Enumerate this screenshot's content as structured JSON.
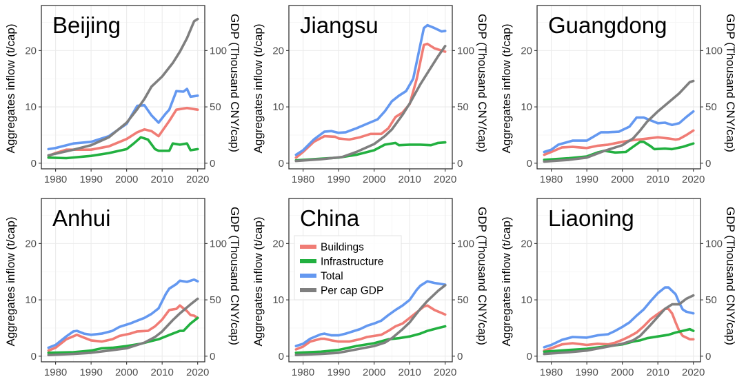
{
  "chart_data": {
    "type": "line",
    "layout": "2x3 facet grid",
    "left_axis": {
      "label": "Aggregates inflow (t/cap)",
      "ticks": [
        0,
        10,
        20
      ],
      "range": [
        -1,
        28
      ]
    },
    "right_axis": {
      "label": "GDP (Thousand CNY/cap)",
      "ticks": [
        0,
        50,
        100
      ],
      "range": [
        -5,
        140
      ],
      "scale_note": "GDP plotted as value/5 on left scale"
    },
    "x_axis": {
      "ticks": [
        1980,
        1990,
        2000,
        2010,
        2020
      ],
      "range": [
        1976,
        2022
      ]
    },
    "grid": true,
    "legend": {
      "placement": "inside China panel, upper-left",
      "entries": [
        {
          "name": "Buildings",
          "color": "#f07c75"
        },
        {
          "name": "Infrastructure",
          "color": "#22b040"
        },
        {
          "name": "Total",
          "color": "#6498f0"
        },
        {
          "name": "Per cap GDP",
          "color": "#7f7f7f"
        }
      ]
    },
    "panels": [
      {
        "title": "Beijing",
        "series": {
          "Buildings": {
            "x": [
              1978,
              1980,
              1983,
              1990,
              1995,
              2000,
              2003,
              2005,
              2007,
              2009,
              2012,
              2014,
              2017,
              2020
            ],
            "y": [
              1.3,
              1.8,
              2.4,
              2.4,
              3.0,
              4.3,
              5.5,
              6.0,
              5.7,
              4.8,
              7.5,
              9.5,
              9.8,
              9.5
            ]
          },
          "Infrastructure": {
            "x": [
              1978,
              1983,
              1990,
              1995,
              2000,
              2002,
              2004,
              2006,
              2008,
              2009,
              2012,
              2013,
              2015,
              2017,
              2018,
              2020
            ],
            "y": [
              1.0,
              0.9,
              1.3,
              1.8,
              2.5,
              3.5,
              4.6,
              4.2,
              2.5,
              2.2,
              2.2,
              3.5,
              3.3,
              3.5,
              2.3,
              2.5
            ]
          },
          "Total": {
            "x": [
              1978,
              1980,
              1985,
              1990,
              1995,
              2000,
              2003,
              2005,
              2007,
              2009,
              2011,
              2012,
              2014,
              2016,
              2017,
              2018,
              2020
            ],
            "y": [
              2.5,
              2.7,
              3.5,
              3.8,
              4.8,
              7.0,
              10.2,
              10.3,
              8.5,
              7.2,
              8.8,
              9.5,
              12.8,
              12.7,
              13.2,
              11.8,
              12.0
            ]
          },
          "Per cap GDP": {
            "x": [
              1978,
              1985,
              1990,
              1995,
              2000,
              2003,
              2005,
              2007,
              2010,
              2013,
              2015,
              2017,
              2019,
              2020
            ],
            "y": [
              7,
              12,
              16,
              23,
              36,
              48,
              57,
              68,
              77,
              89,
              99,
              111,
              126,
              128
            ]
          }
        }
      },
      {
        "title": "Jiangsu",
        "series": {
          "Buildings": {
            "x": [
              1978,
              1980,
              1983,
              1986,
              1989,
              1990,
              1993,
              1996,
              1999,
              2002,
              2004,
              2006,
              2008,
              2010,
              2012,
              2014,
              2015,
              2017,
              2020
            ],
            "y": [
              1.0,
              2.0,
              3.8,
              4.8,
              4.7,
              4.4,
              4.2,
              4.6,
              5.2,
              5.2,
              6.2,
              8.2,
              9.0,
              10.5,
              15.0,
              21.0,
              21.2,
              20.4,
              19.8
            ]
          },
          "Infrastructure": {
            "x": [
              1978,
              1985,
              1990,
              1995,
              2000,
              2003,
              2006,
              2007,
              2010,
              2013,
              2016,
              2018,
              2020
            ],
            "y": [
              0.5,
              0.8,
              1.0,
              1.5,
              2.3,
              3.3,
              3.6,
              3.2,
              3.3,
              3.3,
              3.2,
              3.6,
              3.7
            ]
          },
          "Total": {
            "x": [
              1978,
              1980,
              1983,
              1986,
              1988,
              1990,
              1992,
              1995,
              1998,
              2001,
              2003,
              2005,
              2007,
              2009,
              2011,
              2013,
              2014,
              2015,
              2017,
              2019,
              2020
            ],
            "y": [
              1.5,
              2.3,
              4.2,
              5.6,
              5.7,
              5.4,
              5.5,
              6.2,
              7.0,
              7.8,
              9.2,
              11.0,
              12.0,
              12.8,
              15.0,
              21.0,
              24.0,
              24.5,
              24.0,
              23.4,
              23.5
            ]
          },
          "Per cap GDP": {
            "x": [
              1978,
              1985,
              1991,
              1995,
              2000,
              2003,
              2005,
              2008,
              2010,
              2013,
              2015,
              2018,
              2020
            ],
            "y": [
              2,
              3.5,
              5.5,
              10,
              17,
              24,
              30,
              43,
              53,
              70,
              80,
              95,
              104
            ]
          }
        }
      },
      {
        "title": "Guangdong",
        "series": {
          "Buildings": {
            "x": [
              1978,
              1980,
              1983,
              1986,
              1990,
              1993,
              1996,
              2000,
              2003,
              2006,
              2010,
              2013,
              2015,
              2016,
              2018,
              2020
            ],
            "y": [
              1.5,
              2.0,
              2.8,
              2.9,
              2.7,
              3.1,
              3.3,
              3.8,
              4.1,
              4.3,
              4.6,
              4.4,
              4.2,
              4.3,
              5.0,
              5.8
            ]
          },
          "Infrastructure": {
            "x": [
              1978,
              1985,
              1990,
              1993,
              1995,
              1998,
              2001,
              2003,
              2005,
              2006,
              2008,
              2009,
              2012,
              2014,
              2017,
              2020
            ],
            "y": [
              0.6,
              0.9,
              1.2,
              1.9,
              2.2,
              1.9,
              2.0,
              2.9,
              3.8,
              3.8,
              3.0,
              2.5,
              2.6,
              2.5,
              2.9,
              3.5
            ]
          },
          "Total": {
            "x": [
              1978,
              1980,
              1982,
              1986,
              1990,
              1994,
              1996,
              1999,
              2002,
              2004,
              2006,
              2008,
              2010,
              2012,
              2014,
              2016,
              2018,
              2020
            ],
            "y": [
              2.0,
              2.4,
              3.3,
              4.0,
              4.0,
              5.5,
              5.5,
              5.6,
              6.5,
              8.1,
              8.1,
              7.6,
              7.1,
              7.2,
              6.8,
              7.1,
              8.2,
              9.2
            ]
          },
          "Per cap GDP": {
            "x": [
              1978,
              1985,
              1990,
              1995,
              2000,
              2003,
              2005,
              2007,
              2010,
              2013,
              2016,
              2019,
              2020
            ],
            "y": [
              1.5,
              3,
              5,
              11,
              16,
              22,
              29,
              37,
              46,
              54,
              62,
              72,
              73
            ]
          }
        }
      },
      {
        "title": "Anhui",
        "series": {
          "Buildings": {
            "x": [
              1978,
              1980,
              1983,
              1986,
              1988,
              1990,
              1993,
              1996,
              1998,
              2001,
              2003,
              2006,
              2008,
              2010,
              2012,
              2014,
              2015,
              2017,
              2018,
              2019,
              2020
            ],
            "y": [
              1.0,
              1.5,
              3.0,
              3.8,
              3.3,
              2.8,
              2.6,
              3.0,
              3.6,
              4.0,
              4.4,
              4.5,
              5.3,
              6.5,
              8.2,
              8.4,
              9.0,
              8.0,
              7.3,
              7.2,
              6.8
            ]
          },
          "Infrastructure": {
            "x": [
              1978,
              1985,
              1990,
              1993,
              1996,
              2000,
              2004,
              2007,
              2009,
              2011,
              2013,
              2015,
              2016,
              2018,
              2020
            ],
            "y": [
              0.6,
              0.7,
              1.0,
              1.4,
              1.5,
              1.8,
              2.2,
              2.7,
              3.0,
              3.5,
              4.0,
              4.5,
              4.5,
              5.8,
              6.8
            ]
          },
          "Total": {
            "x": [
              1978,
              1980,
              1983,
              1985,
              1986,
              1988,
              1990,
              1993,
              1996,
              1998,
              2001,
              2003,
              2005,
              2007,
              2009,
              2011,
              2012,
              2014,
              2015,
              2017,
              2019,
              2020
            ],
            "y": [
              1.5,
              2.0,
              3.5,
              4.4,
              4.5,
              4.0,
              3.8,
              4.0,
              4.5,
              5.2,
              5.8,
              6.3,
              6.8,
              7.5,
              8.5,
              11.0,
              12.0,
              12.8,
              13.4,
              13.2,
              13.6,
              13.3
            ]
          },
          "Per cap GDP": {
            "x": [
              1978,
              1985,
              1990,
              1995,
              2000,
              2005,
              2008,
              2010,
              2013,
              2015,
              2018,
              2020
            ],
            "y": [
              1,
              2,
              3,
              5,
              7,
              12,
              17,
              22,
              32,
              38,
              46,
              51
            ]
          }
        }
      },
      {
        "title": "China",
        "series": {
          "Buildings": {
            "x": [
              1978,
              1980,
              1982,
              1985,
              1986,
              1988,
              1990,
              1993,
              1996,
              1998,
              2000,
              2002,
              2004,
              2006,
              2008,
              2010,
              2012,
              2014,
              2015,
              2017,
              2020
            ],
            "y": [
              1.2,
              1.7,
              2.6,
              3.1,
              3.1,
              2.8,
              2.6,
              2.6,
              3.0,
              3.4,
              3.6,
              3.8,
              4.5,
              5.3,
              5.8,
              6.8,
              7.8,
              8.8,
              9.0,
              8.2,
              7.4
            ]
          },
          "Infrastructure": {
            "x": [
              1978,
              1985,
              1990,
              1995,
              2000,
              2004,
              2007,
              2010,
              2013,
              2015,
              2018,
              2020
            ],
            "y": [
              0.6,
              0.8,
              1.1,
              1.8,
              2.3,
              3.0,
              3.2,
              3.5,
              4.0,
              4.5,
              5.0,
              5.3
            ]
          },
          "Total": {
            "x": [
              1978,
              1980,
              1982,
              1985,
              1986,
              1988,
              1990,
              1992,
              1994,
              1996,
              1998,
              2000,
              2002,
              2004,
              2006,
              2008,
              2010,
              2012,
              2013,
              2015,
              2017,
              2020
            ],
            "y": [
              1.8,
              2.2,
              3.1,
              3.9,
              4.0,
              3.7,
              3.7,
              4.0,
              4.4,
              4.8,
              5.4,
              5.8,
              6.3,
              7.3,
              8.2,
              9.0,
              10.0,
              11.8,
              12.5,
              13.3,
              13.0,
              12.7
            ]
          },
          "Per cap GDP": {
            "x": [
              1978,
              1985,
              1990,
              1995,
              2000,
              2003,
              2005,
              2008,
              2010,
              2013,
              2015,
              2018,
              2020
            ],
            "y": [
              1,
              2,
              3,
              6,
              9,
              12,
              16,
              24,
              30,
              42,
              49,
              58,
              63
            ]
          }
        }
      },
      {
        "title": "Liaoning",
        "series": {
          "Buildings": {
            "x": [
              1978,
              1980,
              1983,
              1986,
              1990,
              1993,
              1996,
              1998,
              2000,
              2002,
              2004,
              2006,
              2008,
              2010,
              2012,
              2013,
              2014,
              2015,
              2016,
              2017,
              2019,
              2020
            ],
            "y": [
              1.0,
              1.4,
              2.1,
              2.3,
              2.0,
              2.2,
              2.1,
              2.4,
              2.9,
              3.5,
              4.2,
              5.3,
              6.6,
              7.5,
              8.4,
              8.4,
              7.6,
              6.0,
              4.5,
              3.6,
              3.0,
              3.0
            ]
          },
          "Infrastructure": {
            "x": [
              1978,
              1985,
              1990,
              1995,
              2000,
              2003,
              2005,
              2007,
              2010,
              2013,
              2015,
              2017,
              2019,
              2020
            ],
            "y": [
              0.8,
              1.1,
              1.3,
              1.7,
              2.1,
              2.6,
              2.8,
              3.2,
              3.5,
              3.8,
              4.2,
              4.5,
              4.8,
              4.5
            ]
          },
          "Total": {
            "x": [
              1978,
              1980,
              1983,
              1986,
              1990,
              1993,
              1996,
              1998,
              2000,
              2002,
              2004,
              2006,
              2008,
              2010,
              2012,
              2013,
              2015,
              2016,
              2017,
              2018,
              2020
            ],
            "y": [
              1.6,
              2.0,
              2.9,
              3.4,
              3.3,
              3.7,
              3.9,
              4.5,
              5.2,
              6.0,
              7.2,
              8.3,
              9.8,
              11.2,
              12.2,
              12.2,
              11.0,
              9.5,
              8.3,
              7.9,
              7.6
            ]
          },
          "Per cap GDP": {
            "x": [
              1978,
              1985,
              1990,
              1995,
              2000,
              2003,
              2005,
              2008,
              2010,
              2012,
              2014,
              2016,
              2018,
              2020
            ],
            "y": [
              2,
              3.5,
              5,
              8,
              11,
              14,
              18,
              28,
              35,
              42,
              46,
              46,
              51,
              54
            ]
          }
        }
      }
    ]
  }
}
